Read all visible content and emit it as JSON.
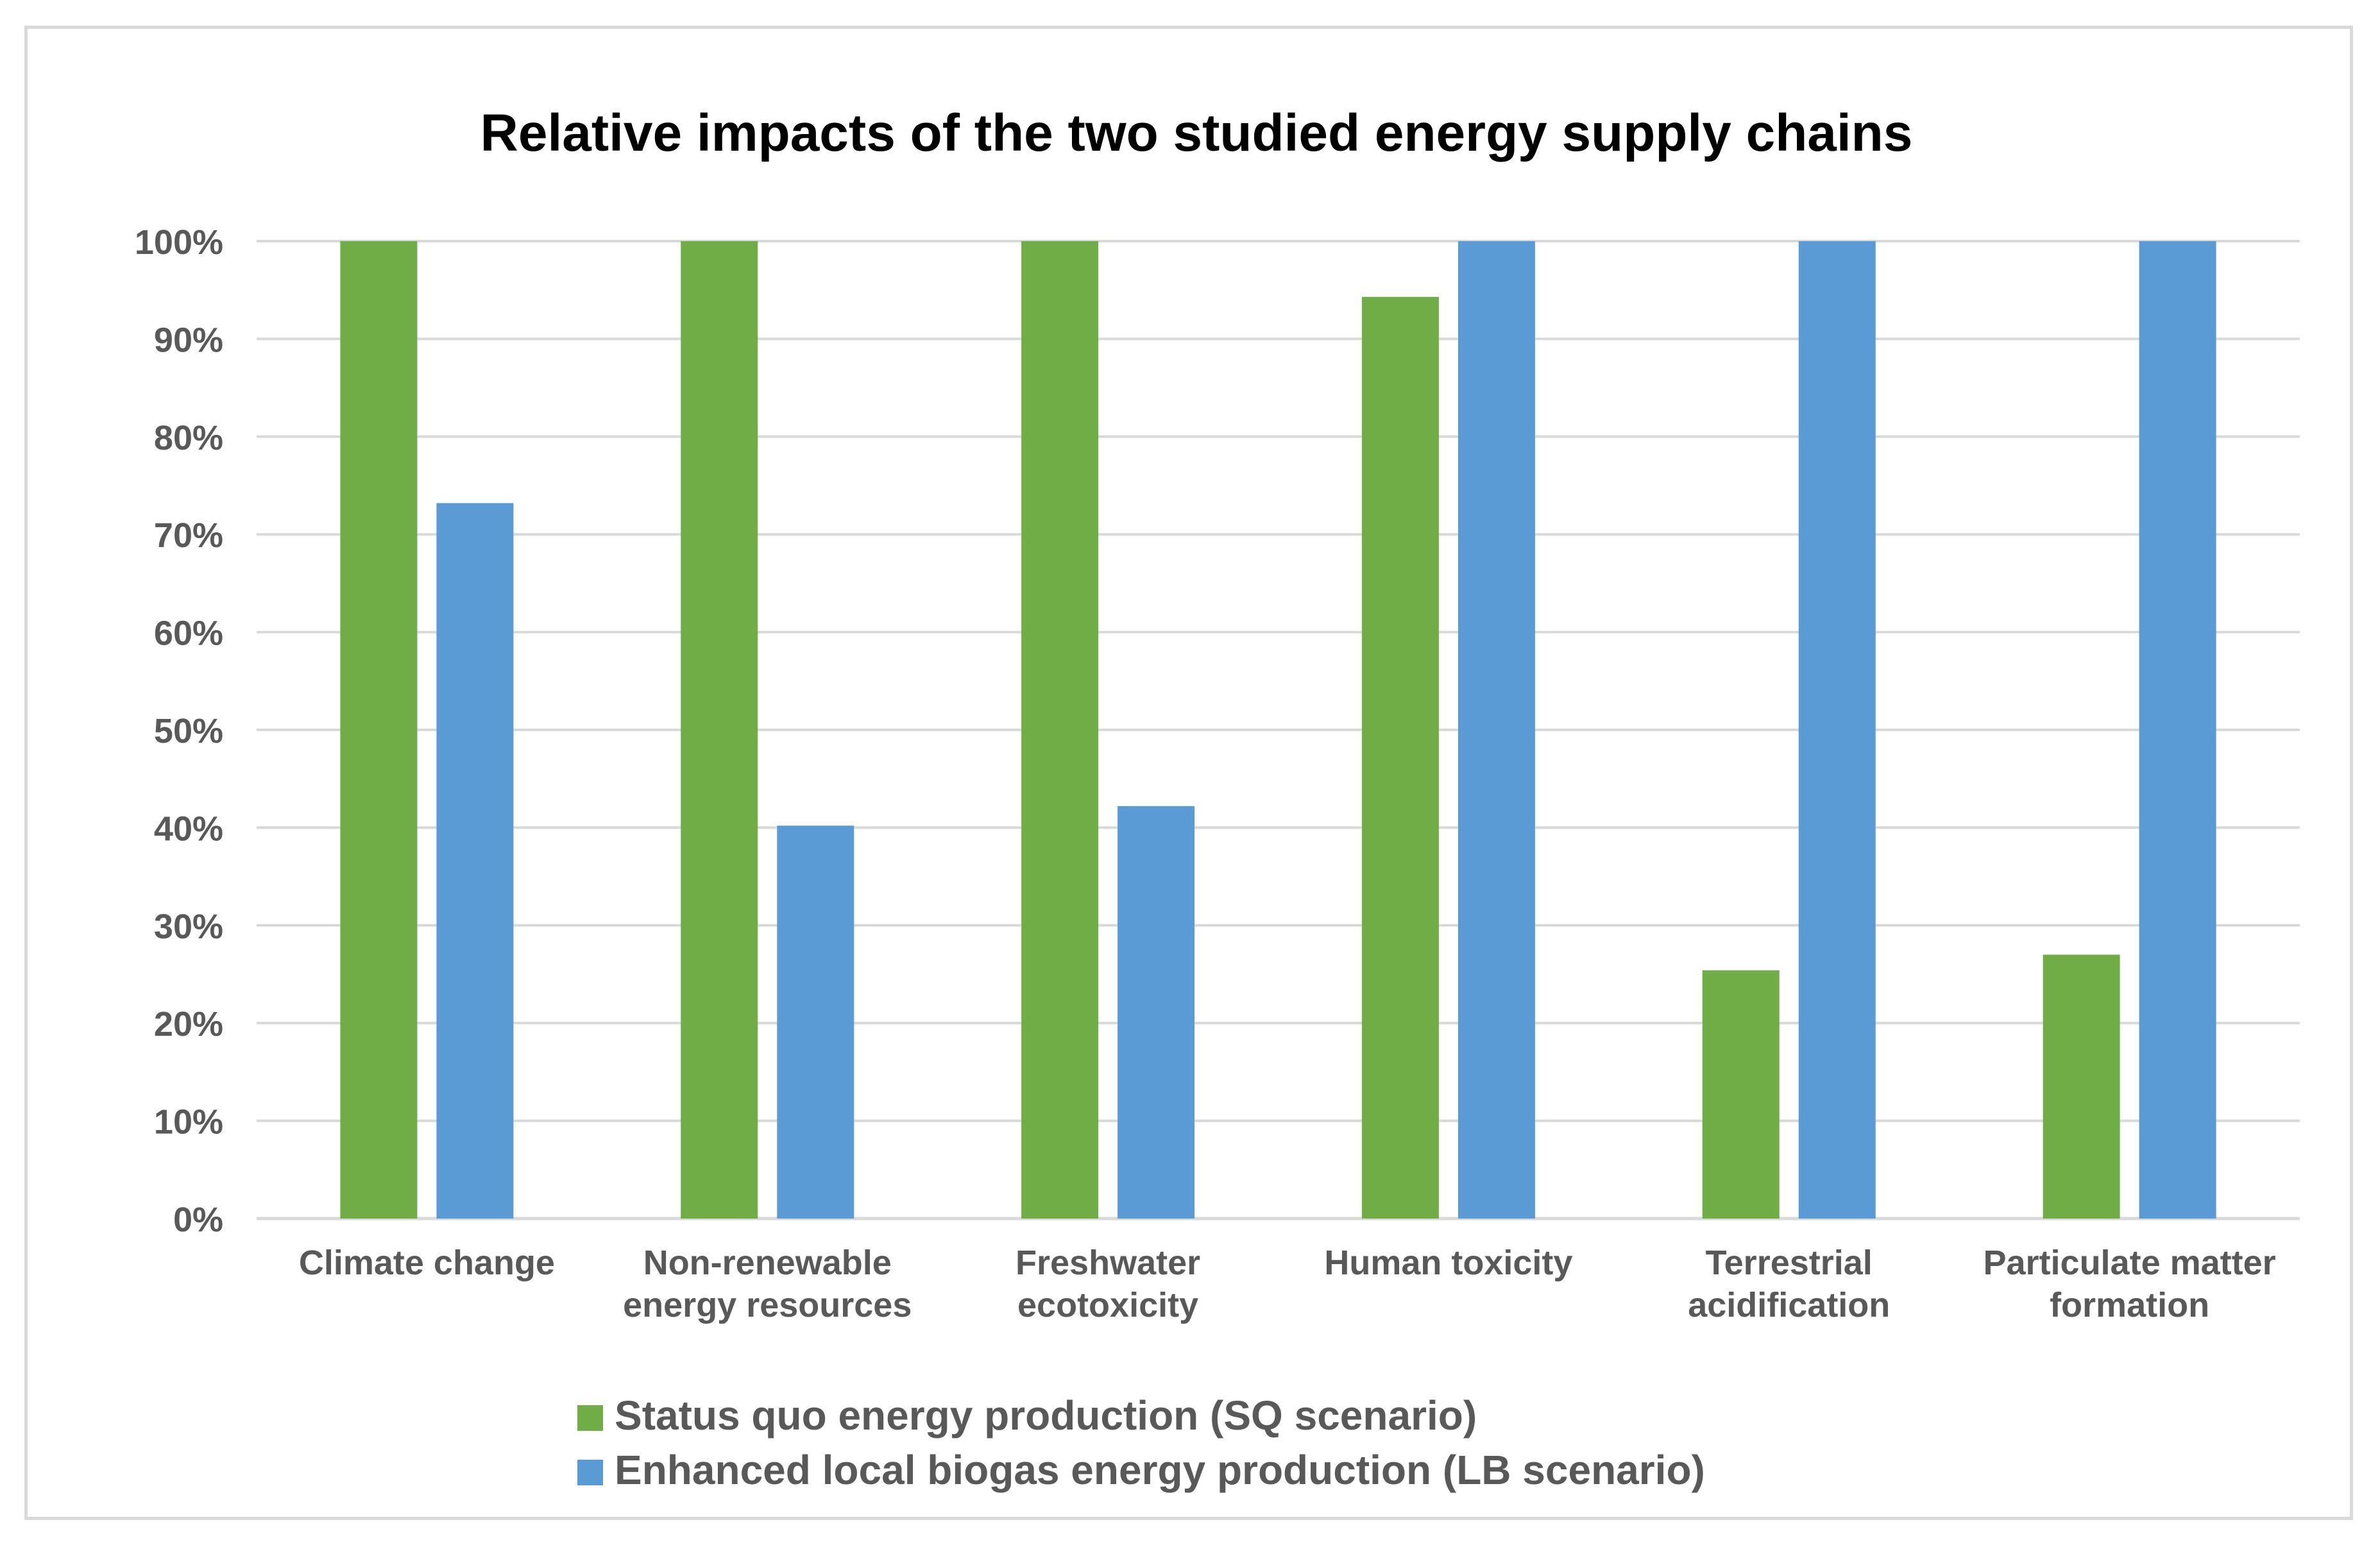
{
  "chart_data": {
    "type": "bar",
    "title": "Relative impacts of the two studied energy supply chains",
    "xlabel": "",
    "ylabel": "",
    "ylim": [
      0,
      100
    ],
    "yticks": [
      "0%",
      "10%",
      "20%",
      "30%",
      "40%",
      "50%",
      "60%",
      "70%",
      "80%",
      "90%",
      "100%"
    ],
    "grid": true,
    "legend_position": "bottom",
    "categories": [
      [
        "Climate change"
      ],
      [
        "Non-renewable",
        "energy resources"
      ],
      [
        "Freshwater",
        "ecotoxicity"
      ],
      [
        "Human toxicity"
      ],
      [
        "Terrestrial",
        "acidification"
      ],
      [
        "Particulate matter",
        "formation"
      ]
    ],
    "series": [
      {
        "name": "Status quo energy production (SQ scenario)",
        "color": "#70ad47",
        "values": [
          100,
          100,
          100,
          94.3,
          25.4,
          27
        ]
      },
      {
        "name": "Enhanced local biogas energy production (LB scenario)",
        "color": "#5b9bd5",
        "values": [
          73.2,
          40.2,
          42.2,
          100,
          100,
          100
        ]
      }
    ]
  }
}
